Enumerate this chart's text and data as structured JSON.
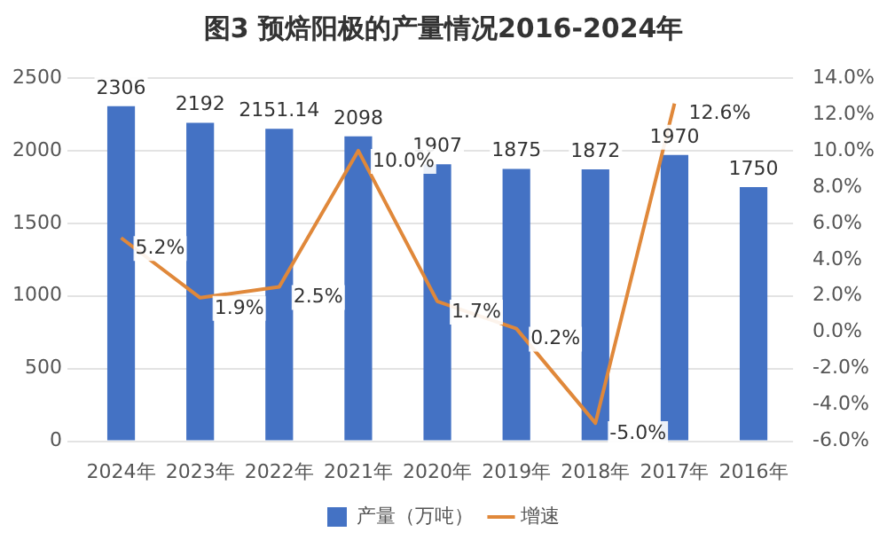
{
  "chart_data": {
    "type": "bar",
    "title": "图3 预焙阳极的产量情况2016-2024年",
    "categories": [
      "2024年",
      "2023年",
      "2022年",
      "2021年",
      "2020年",
      "2019年",
      "2018年",
      "2017年",
      "2016年"
    ],
    "series": [
      {
        "name": "产量（万吨）",
        "color": "#4472c4",
        "values": [
          2306,
          2192,
          2151.14,
          2098,
          1907,
          1875,
          1872,
          1970,
          1750
        ],
        "value_labels": [
          "2306",
          "2192",
          "2151.14",
          "2098",
          "1907",
          "1875",
          "1872",
          "1970",
          "1750"
        ]
      },
      {
        "name": "增速",
        "type": "line",
        "axis": "y2",
        "color": "#e0883a",
        "values": [
          5.2,
          1.9,
          2.5,
          10.0,
          1.7,
          0.2,
          -5.0,
          12.6,
          null
        ],
        "value_labels": [
          "5.2%",
          "1.9%",
          "2.5%",
          "10.0%",
          "1.7%",
          "0.2%",
          "-5.0%",
          "12.6%",
          null
        ]
      }
    ],
    "ylim": [
      0,
      2500
    ],
    "yticks": [
      0,
      500,
      1000,
      1500,
      2000,
      2500
    ],
    "y2lim": [
      -6,
      14
    ],
    "y2ticks": [
      {
        "value": -6,
        "label": "-6.0%"
      },
      {
        "value": -4,
        "label": "-4.0%"
      },
      {
        "value": -2,
        "label": "-2.0%"
      },
      {
        "value": 0,
        "label": "0.0%"
      },
      {
        "value": 2,
        "label": "2.0%"
      },
      {
        "value": 4,
        "label": "4.0%"
      },
      {
        "value": 6,
        "label": "6.0%"
      },
      {
        "value": 8,
        "label": "8.0%"
      },
      {
        "value": 10,
        "label": "10.0%"
      },
      {
        "value": 12,
        "label": "12.0%"
      },
      {
        "value": 14,
        "label": "14.0%"
      }
    ],
    "grid": "y",
    "legend": "bottom",
    "marker": "none",
    "line_style": "solid"
  }
}
